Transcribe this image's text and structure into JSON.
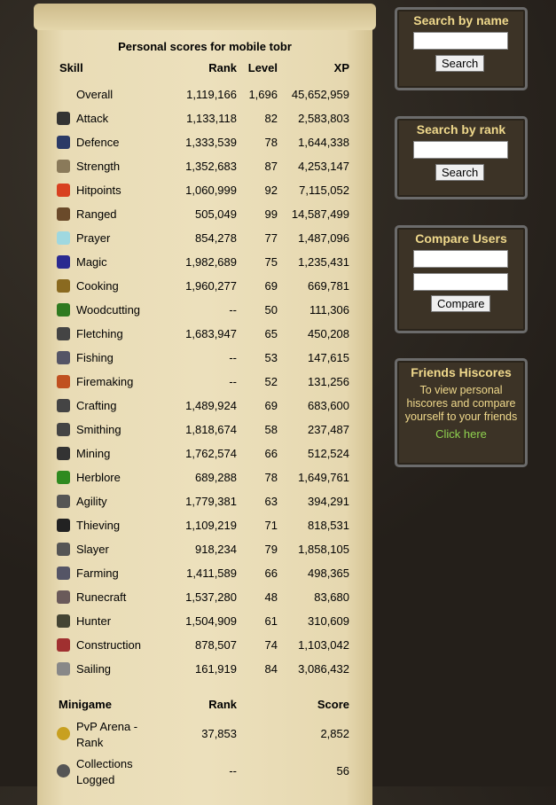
{
  "hiscores": {
    "title": "Personal scores for mobile tobr",
    "skills": {
      "headers": [
        "Skill",
        "Rank",
        "Level",
        "XP"
      ],
      "rows": [
        {
          "name": "Overall",
          "rank": "1,119,166",
          "level": "1,696",
          "xp": "45,652,959"
        },
        {
          "name": "Attack",
          "rank": "1,133,118",
          "level": "82",
          "xp": "2,583,803"
        },
        {
          "name": "Defence",
          "rank": "1,333,539",
          "level": "78",
          "xp": "1,644,338"
        },
        {
          "name": "Strength",
          "rank": "1,352,683",
          "level": "87",
          "xp": "4,253,147"
        },
        {
          "name": "Hitpoints",
          "rank": "1,060,999",
          "level": "92",
          "xp": "7,115,052"
        },
        {
          "name": "Ranged",
          "rank": "505,049",
          "level": "99",
          "xp": "14,587,499"
        },
        {
          "name": "Prayer",
          "rank": "854,278",
          "level": "77",
          "xp": "1,487,096"
        },
        {
          "name": "Magic",
          "rank": "1,982,689",
          "level": "75",
          "xp": "1,235,431"
        },
        {
          "name": "Cooking",
          "rank": "1,960,277",
          "level": "69",
          "xp": "669,781"
        },
        {
          "name": "Woodcutting",
          "rank": "--",
          "level": "50",
          "xp": "111,306"
        },
        {
          "name": "Fletching",
          "rank": "1,683,947",
          "level": "65",
          "xp": "450,208"
        },
        {
          "name": "Fishing",
          "rank": "--",
          "level": "53",
          "xp": "147,615"
        },
        {
          "name": "Firemaking",
          "rank": "--",
          "level": "52",
          "xp": "131,256"
        },
        {
          "name": "Crafting",
          "rank": "1,489,924",
          "level": "69",
          "xp": "683,600"
        },
        {
          "name": "Smithing",
          "rank": "1,818,674",
          "level": "58",
          "xp": "237,487"
        },
        {
          "name": "Mining",
          "rank": "1,762,574",
          "level": "66",
          "xp": "512,524"
        },
        {
          "name": "Herblore",
          "rank": "689,288",
          "level": "78",
          "xp": "1,649,761"
        },
        {
          "name": "Agility",
          "rank": "1,779,381",
          "level": "63",
          "xp": "394,291"
        },
        {
          "name": "Thieving",
          "rank": "1,109,219",
          "level": "71",
          "xp": "818,531"
        },
        {
          "name": "Slayer",
          "rank": "918,234",
          "level": "79",
          "xp": "1,858,105"
        },
        {
          "name": "Farming",
          "rank": "1,411,589",
          "level": "66",
          "xp": "498,365"
        },
        {
          "name": "Runecraft",
          "rank": "1,537,280",
          "level": "48",
          "xp": "83,680"
        },
        {
          "name": "Hunter",
          "rank": "1,504,909",
          "level": "61",
          "xp": "310,609"
        },
        {
          "name": "Construction",
          "rank": "878,507",
          "level": "74",
          "xp": "1,103,042"
        },
        {
          "name": "Sailing",
          "rank": "161,919",
          "level": "84",
          "xp": "3,086,432"
        }
      ]
    },
    "minigames": {
      "headers": [
        "Minigame",
        "Rank",
        "Score"
      ],
      "rows": [
        {
          "name": "PvP Arena - Rank",
          "rank": "37,853",
          "score": "2,852"
        },
        {
          "name": "Collections Logged",
          "rank": "--",
          "score": "56"
        }
      ]
    }
  },
  "sidebar": {
    "search_name": {
      "title": "Search by name",
      "button": "Search"
    },
    "search_rank": {
      "title": "Search by rank",
      "button": "Search"
    },
    "compare": {
      "title": "Compare Users",
      "button": "Compare"
    },
    "friends": {
      "title": "Friends Hiscores",
      "text": "To view personal hiscores and compare yourself to your friends",
      "link": "Click here"
    }
  }
}
